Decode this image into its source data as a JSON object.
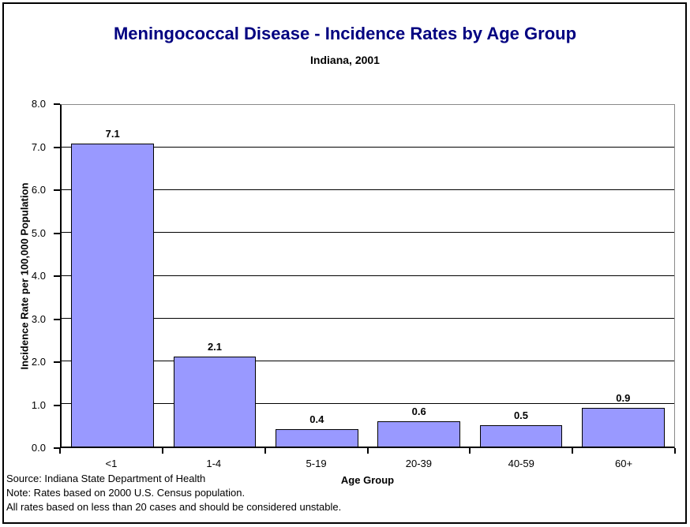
{
  "chart_data": {
    "type": "bar",
    "title": "Meningococcal Disease - Incidence Rates by Age Group",
    "subtitle": "Indiana, 2001",
    "xlabel": "Age Group",
    "ylabel": "Incidence Rate per 100,000 Population",
    "categories": [
      "<1",
      "1-4",
      "5-19",
      "20-39",
      "40-59",
      "60+"
    ],
    "values": [
      7.1,
      2.1,
      0.4,
      0.6,
      0.5,
      0.9
    ],
    "data_labels": [
      "7.1",
      "2.1",
      "0.4",
      "0.6",
      "0.5",
      "0.9"
    ],
    "ylim": [
      0,
      8
    ],
    "ytick_labels": [
      "0.0",
      "1.0",
      "2.0",
      "3.0",
      "4.0",
      "5.0",
      "6.0",
      "7.0",
      "8.0"
    ],
    "grid": true,
    "legend_position": "none",
    "bar_color": "#9999FF",
    "bar_border_color": "#000000",
    "gridline_color": "#000000",
    "plot_border_color": "#8a8a8a",
    "title_color": "#000080"
  },
  "footnotes": [
    "Source: Indiana State Department of Health",
    "Note: Rates based on 2000 U.S. Census population.",
    "All rates based on less than 20 cases and should be considered unstable."
  ]
}
